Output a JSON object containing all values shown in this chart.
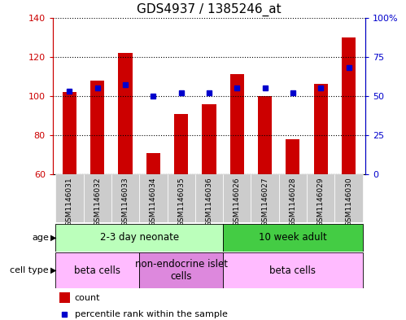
{
  "title": "GDS4937 / 1385246_at",
  "samples": [
    "GSM1146031",
    "GSM1146032",
    "GSM1146033",
    "GSM1146034",
    "GSM1146035",
    "GSM1146036",
    "GSM1146026",
    "GSM1146027",
    "GSM1146028",
    "GSM1146029",
    "GSM1146030"
  ],
  "counts": [
    102,
    108,
    122,
    71,
    91,
    96,
    111,
    100,
    78,
    106,
    130
  ],
  "percentiles": [
    53,
    55,
    57,
    50,
    52,
    52,
    55,
    55,
    52,
    55,
    68
  ],
  "ylim_left": [
    60,
    140
  ],
  "ylim_right": [
    0,
    100
  ],
  "yticks_left": [
    60,
    80,
    100,
    120,
    140
  ],
  "yticks_right": [
    0,
    25,
    50,
    75,
    100
  ],
  "bar_color": "#cc0000",
  "marker_color": "#0000cc",
  "bar_width": 0.5,
  "age_groups": [
    {
      "label": "2-3 day neonate",
      "start": 0,
      "end": 6,
      "color": "#bbffbb"
    },
    {
      "label": "10 week adult",
      "start": 6,
      "end": 11,
      "color": "#44cc44"
    }
  ],
  "cell_type_groups": [
    {
      "label": "beta cells",
      "start": 0,
      "end": 3,
      "color": "#ffbbff"
    },
    {
      "label": "non-endocrine islet\ncells",
      "start": 3,
      "end": 6,
      "color": "#dd88dd"
    },
    {
      "label": "beta cells",
      "start": 6,
      "end": 11,
      "color": "#ffbbff"
    }
  ],
  "legend_count_color": "#cc0000",
  "legend_percentile_color": "#0000cc",
  "title_fontsize": 11,
  "tick_fontsize": 8,
  "sample_fontsize": 6.5,
  "row_label_fontsize": 8,
  "group_label_fontsize": 8.5,
  "legend_fontsize": 8
}
